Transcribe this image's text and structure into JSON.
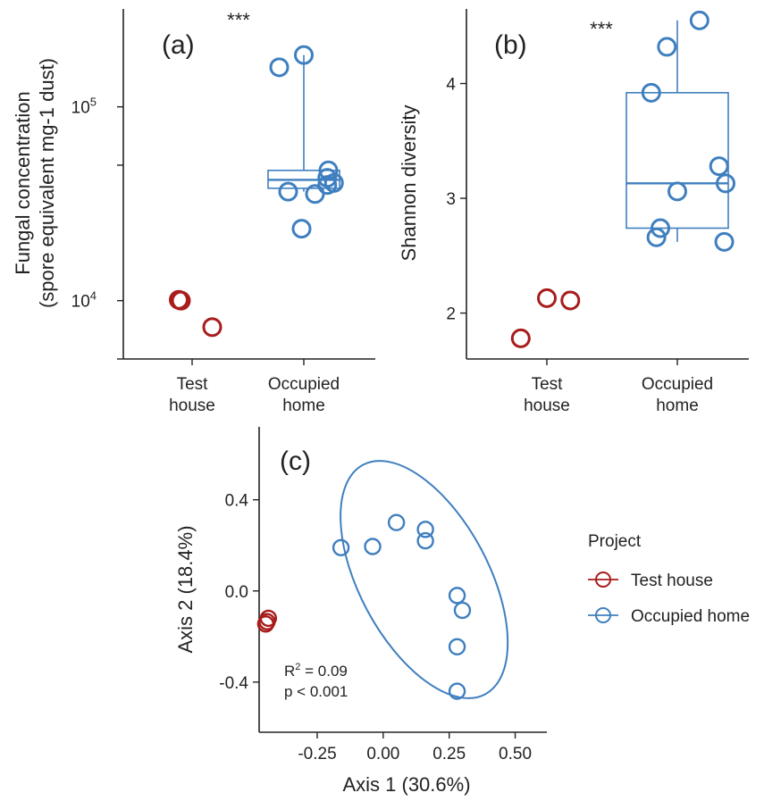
{
  "chart_data": [
    {
      "panel_label": "(a)",
      "type": "scatter",
      "overlay": "boxplot",
      "significance": "***",
      "ylabel_lines": [
        "Fungal concentration",
        "(spore equivalent mg-1 dust)"
      ],
      "xlabel": "",
      "y_scale": "log10",
      "ylim": [
        5000,
        320000
      ],
      "yticks": [
        {
          "value": 10000,
          "base": "10",
          "exp": "4"
        },
        {
          "value": 100000,
          "base": "10",
          "exp": "5"
        }
      ],
      "categories": [
        {
          "key": "test",
          "lines": [
            "Test",
            "house"
          ]
        },
        {
          "key": "occupied",
          "lines": [
            "Occupied",
            "home"
          ]
        }
      ],
      "series": [
        {
          "category": "test",
          "color": "#a81c1c",
          "points": [
            {
              "jitter": -0.12,
              "value": 10100
            },
            {
              "jitter": -0.1,
              "value": 10000
            },
            {
              "jitter": 0.18,
              "value": 7300
            }
          ]
        },
        {
          "category": "occupied",
          "color": "#3f7fbf",
          "points": [
            {
              "jitter": -0.22,
              "value": 160000
            },
            {
              "jitter": 0.0,
              "value": 185000
            },
            {
              "jitter": 0.22,
              "value": 47000
            },
            {
              "jitter": 0.21,
              "value": 43000
            },
            {
              "jitter": 0.21,
              "value": 39500
            },
            {
              "jitter": 0.27,
              "value": 40500
            },
            {
              "jitter": -0.14,
              "value": 36500
            },
            {
              "jitter": 0.1,
              "value": 35500
            },
            {
              "jitter": -0.02,
              "value": 23500
            }
          ],
          "box": {
            "lower_whisker": 36500,
            "q1": 38000,
            "median": 42000,
            "q3": 47000,
            "upper_whisker": 185000
          }
        }
      ]
    },
    {
      "panel_label": "(b)",
      "type": "scatter",
      "overlay": "boxplot",
      "significance": "***",
      "ylabel_lines": [
        "Shannon diversity"
      ],
      "xlabel": "",
      "ylim": [
        1.6,
        4.65
      ],
      "yticks": [
        {
          "value": 2,
          "label": "2"
        },
        {
          "value": 3,
          "label": "3"
        },
        {
          "value": 4,
          "label": "4"
        }
      ],
      "categories": [
        {
          "key": "test",
          "lines": [
            "Test",
            "house"
          ]
        },
        {
          "key": "occupied",
          "lines": [
            "Occupied",
            "home"
          ]
        }
      ],
      "series": [
        {
          "category": "test",
          "color": "#a81c1c",
          "points": [
            {
              "jitter": -0.2,
              "value": 1.78
            },
            {
              "jitter": 0.0,
              "value": 2.13
            },
            {
              "jitter": 0.18,
              "value": 2.11
            }
          ]
        },
        {
          "category": "occupied",
          "color": "#3f7fbf",
          "points": [
            {
              "jitter": -0.2,
              "value": 3.92
            },
            {
              "jitter": -0.08,
              "value": 4.32
            },
            {
              "jitter": 0.17,
              "value": 4.55
            },
            {
              "jitter": 0.32,
              "value": 3.28
            },
            {
              "jitter": 0.37,
              "value": 3.13
            },
            {
              "jitter": 0.0,
              "value": 3.06
            },
            {
              "jitter": -0.13,
              "value": 2.74
            },
            {
              "jitter": -0.16,
              "value": 2.66
            },
            {
              "jitter": 0.36,
              "value": 2.62
            }
          ],
          "box": {
            "lower_whisker": 2.62,
            "q1": 2.74,
            "median": 3.13,
            "q3": 3.92,
            "upper_whisker": 4.55
          }
        }
      ]
    },
    {
      "panel_label": "(c)",
      "type": "scatter",
      "overlay": "ellipse",
      "xlabel": "Axis 1 (30.6%)",
      "ylabel": "Axis 2 (18.4%)",
      "xlim": [
        -0.47,
        0.62
      ],
      "ylim": [
        -0.62,
        0.72
      ],
      "xticks": [
        {
          "value": -0.25,
          "label": "-0.25"
        },
        {
          "value": 0.0,
          "label": "0.00"
        },
        {
          "value": 0.25,
          "label": "0.25"
        },
        {
          "value": 0.5,
          "label": "0.50"
        }
      ],
      "yticks": [
        {
          "value": 0.4,
          "label": "0.4"
        },
        {
          "value": 0.0,
          "label": "0.0"
        },
        {
          "value": -0.4,
          "label": "-0.4"
        }
      ],
      "annotation_r2": {
        "base": "R",
        "sup": "2",
        "rest": " = 0.09"
      },
      "annotation_p": "p < 0.001",
      "legend": {
        "title": "Project",
        "placement": "right",
        "items": [
          {
            "label": "Test house",
            "color": "#a81c1c"
          },
          {
            "label": "Occupied home",
            "color": "#3f7fbf"
          }
        ]
      },
      "series": [
        {
          "color": "#a81c1c",
          "points": [
            {
              "x": -0.435,
              "y": -0.12
            },
            {
              "x": -0.44,
              "y": -0.135
            },
            {
              "x": -0.445,
              "y": -0.145
            }
          ]
        },
        {
          "color": "#3f7fbf",
          "points": [
            {
              "x": -0.16,
              "y": 0.19
            },
            {
              "x": -0.04,
              "y": 0.195
            },
            {
              "x": 0.05,
              "y": 0.3
            },
            {
              "x": 0.16,
              "y": 0.27
            },
            {
              "x": 0.16,
              "y": 0.22
            },
            {
              "x": 0.28,
              "y": -0.02
            },
            {
              "x": 0.3,
              "y": -0.085
            },
            {
              "x": 0.28,
              "y": -0.245
            },
            {
              "x": 0.28,
              "y": -0.44
            }
          ],
          "ellipse": {
            "cx": 0.155,
            "cy": 0.05,
            "rx": 0.245,
            "ry": 0.57,
            "rotation_deg": -28
          }
        }
      ]
    }
  ]
}
